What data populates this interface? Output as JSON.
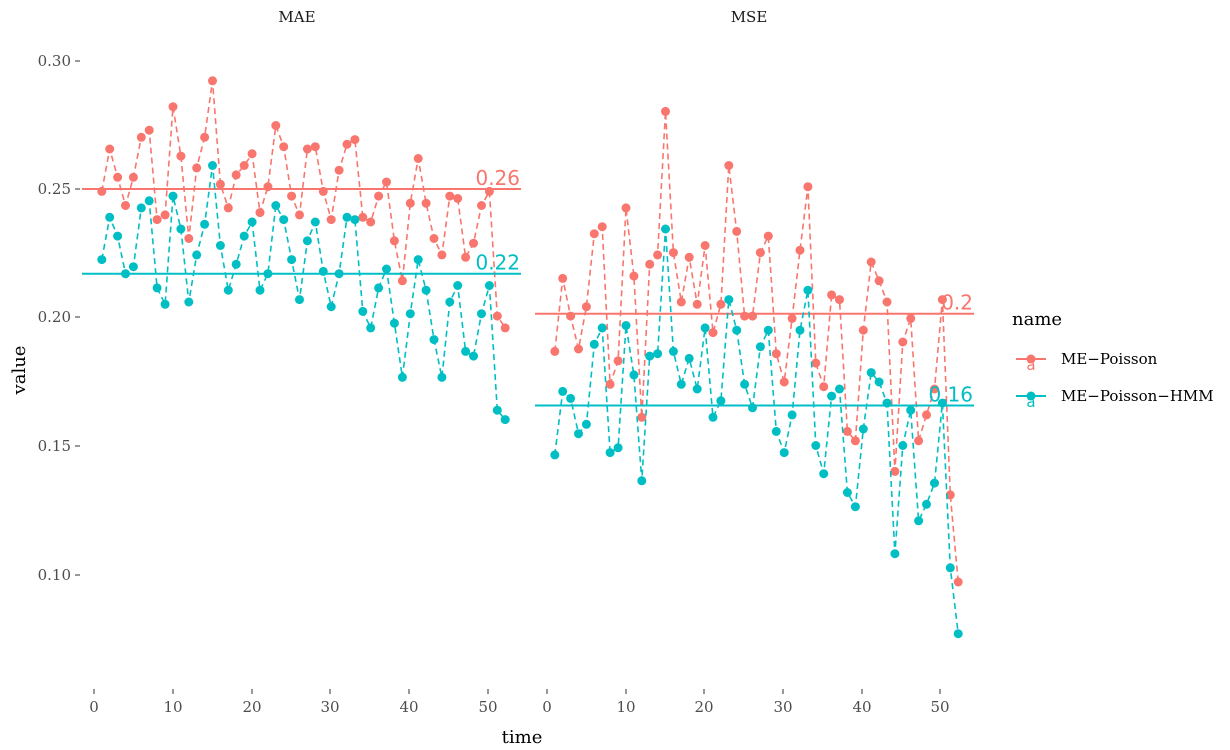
{
  "colors": {
    "me_poisson": "#F8766D",
    "me_poisson_hmm": "#00BFC4"
  },
  "chart_data": {
    "type": "line",
    "xlabel": "time",
    "ylabel": "value",
    "legend": {
      "title": "name",
      "position": "right",
      "entries": [
        "ME−Poisson",
        "ME−Poisson−HMM"
      ]
    },
    "x_ticks": [
      "0",
      "10",
      "20",
      "30",
      "40",
      "50"
    ],
    "y_ticks": [
      "0.10",
      "0.15",
      "0.20",
      "0.25",
      "0.30"
    ],
    "xlim": [
      -1.5,
      54
    ],
    "ylim": [
      0.0425,
      0.3175
    ],
    "facets": [
      {
        "title": "MAE",
        "series": [
          {
            "name": "ME−Poisson",
            "color": "#F8766D",
            "mean": 0.255,
            "mean_label": "0.26",
            "x": [
              1,
              2,
              3,
              4,
              5,
              6,
              7,
              8,
              9,
              10,
              11,
              12,
              13,
              14,
              15,
              16,
              17,
              18,
              19,
              20,
              21,
              22,
              23,
              24,
              25,
              26,
              27,
              28,
              29,
              30,
              31,
              32,
              33,
              34,
              35,
              36,
              37,
              38,
              39,
              40,
              41,
              42,
              43,
              44,
              45,
              46,
              47,
              48,
              49,
              50,
              51,
              52
            ],
            "y": [
              0.254,
              0.272,
              0.26,
              0.248,
              0.26,
              0.277,
              0.28,
              0.242,
              0.244,
              0.29,
              0.269,
              0.234,
              0.264,
              0.277,
              0.301,
              0.257,
              0.247,
              0.261,
              0.265,
              0.27,
              0.245,
              0.256,
              0.282,
              0.273,
              0.252,
              0.244,
              0.272,
              0.273,
              0.254,
              0.242,
              0.263,
              0.274,
              0.276,
              0.243,
              0.241,
              0.252,
              0.258,
              0.233,
              0.216,
              0.249,
              0.268,
              0.249,
              0.234,
              0.227,
              0.252,
              0.251,
              0.226,
              0.232,
              0.248,
              0.254,
              0.201,
              0.196
            ]
          },
          {
            "name": "ME−Poisson−HMM",
            "color": "#00BFC4",
            "mean": 0.219,
            "mean_label": "0.22",
            "x": [
              1,
              2,
              3,
              4,
              5,
              6,
              7,
              8,
              9,
              10,
              11,
              12,
              13,
              14,
              15,
              16,
              17,
              18,
              19,
              20,
              21,
              22,
              23,
              24,
              25,
              26,
              27,
              28,
              29,
              30,
              31,
              32,
              33,
              34,
              35,
              36,
              37,
              38,
              39,
              40,
              41,
              42,
              43,
              44,
              45,
              46,
              47,
              48,
              49,
              50,
              51,
              52
            ],
            "y": [
              0.225,
              0.243,
              0.235,
              0.219,
              0.222,
              0.247,
              0.25,
              0.213,
              0.206,
              0.252,
              0.238,
              0.207,
              0.227,
              0.24,
              0.265,
              0.231,
              0.212,
              0.223,
              0.235,
              0.241,
              0.212,
              0.219,
              0.248,
              0.242,
              0.225,
              0.208,
              0.233,
              0.241,
              0.22,
              0.205,
              0.219,
              0.243,
              0.242,
              0.203,
              0.196,
              0.213,
              0.221,
              0.198,
              0.175,
              0.202,
              0.225,
              0.212,
              0.191,
              0.175,
              0.207,
              0.214,
              0.186,
              0.184,
              0.202,
              0.214,
              0.161,
              0.157
            ]
          }
        ]
      },
      {
        "title": "MSE",
        "series": [
          {
            "name": "ME−Poisson",
            "color": "#F8766D",
            "mean": 0.202,
            "mean_label": "0.2",
            "x": [
              1,
              2,
              3,
              4,
              5,
              6,
              7,
              8,
              9,
              10,
              11,
              12,
              13,
              14,
              15,
              16,
              17,
              18,
              19,
              20,
              21,
              22,
              23,
              24,
              25,
              26,
              27,
              28,
              29,
              30,
              31,
              32,
              33,
              34,
              35,
              36,
              37,
              38,
              39,
              40,
              41,
              42,
              43,
              44,
              45,
              46,
              47,
              48,
              49,
              50,
              51,
              52
            ],
            "y": [
              0.186,
              0.217,
              0.201,
              0.187,
              0.205,
              0.236,
              0.239,
              0.172,
              0.182,
              0.247,
              0.218,
              0.158,
              0.223,
              0.227,
              0.288,
              0.228,
              0.207,
              0.226,
              0.206,
              0.231,
              0.194,
              0.206,
              0.265,
              0.237,
              0.201,
              0.201,
              0.228,
              0.235,
              0.185,
              0.173,
              0.2,
              0.229,
              0.256,
              0.181,
              0.171,
              0.21,
              0.208,
              0.152,
              0.148,
              0.195,
              0.224,
              0.216,
              0.207,
              0.135,
              0.19,
              0.2,
              0.148,
              0.159,
              0.17,
              0.208,
              0.125,
              0.088
            ]
          },
          {
            "name": "ME−Poisson−HMM",
            "color": "#00BFC4",
            "mean": 0.163,
            "mean_label": "0.16",
            "x": [
              1,
              2,
              3,
              4,
              5,
              6,
              7,
              8,
              9,
              10,
              11,
              12,
              13,
              14,
              15,
              16,
              17,
              18,
              19,
              20,
              21,
              22,
              23,
              24,
              25,
              26,
              27,
              28,
              29,
              30,
              31,
              32,
              33,
              34,
              35,
              36,
              37,
              38,
              39,
              40,
              41,
              42,
              43,
              44,
              45,
              46,
              47,
              48,
              49,
              50,
              51,
              52
            ],
            "y": [
              0.142,
              0.169,
              0.166,
              0.151,
              0.155,
              0.189,
              0.196,
              0.143,
              0.145,
              0.197,
              0.176,
              0.131,
              0.184,
              0.185,
              0.238,
              0.186,
              0.172,
              0.183,
              0.17,
              0.196,
              0.158,
              0.165,
              0.208,
              0.195,
              0.172,
              0.162,
              0.188,
              0.195,
              0.152,
              0.143,
              0.159,
              0.195,
              0.212,
              0.146,
              0.134,
              0.167,
              0.17,
              0.126,
              0.12,
              0.153,
              0.177,
              0.173,
              0.164,
              0.1,
              0.146,
              0.161,
              0.114,
              0.121,
              0.13,
              0.164,
              0.094,
              0.066
            ]
          }
        ]
      }
    ]
  }
}
